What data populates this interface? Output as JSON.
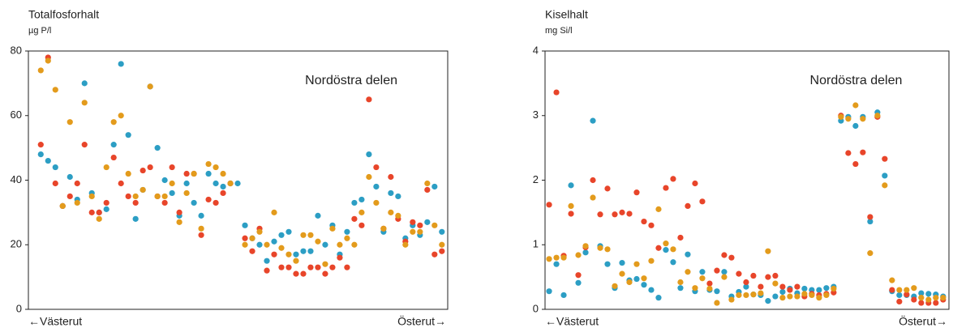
{
  "chart_data": [
    {
      "type": "scatter",
      "title": "Totalfosforhalt",
      "ylabel": "µg P/l",
      "annotation": "Nordöstra delen",
      "x_axis_labels": [
        "←Västerut",
        "Österut→"
      ],
      "x": [
        1,
        2,
        3,
        4,
        5,
        6,
        7,
        8,
        9,
        10,
        11,
        12,
        13,
        14,
        15,
        16,
        17,
        18,
        19,
        20,
        21,
        22,
        23,
        24,
        25,
        26,
        27,
        28,
        29,
        30,
        31,
        32,
        33,
        34,
        35,
        36,
        37,
        38,
        39,
        40,
        41,
        42,
        43,
        44,
        45,
        46,
        47,
        48,
        49,
        50,
        51,
        52,
        53,
        54,
        55,
        56
      ],
      "xlim": [
        -0.7,
        56.8
      ],
      "ylim": [
        0,
        80
      ],
      "yticks": [
        0,
        20,
        40,
        60,
        80
      ],
      "series": [
        {
          "color": "#2c9ec4",
          "values": [
            48,
            46,
            44,
            32,
            41,
            34,
            70,
            36,
            30,
            31,
            51,
            76,
            54,
            28,
            37,
            69,
            50,
            40,
            36,
            29,
            39,
            33,
            29,
            42,
            39,
            38,
            39,
            39,
            26,
            22,
            20,
            15,
            21,
            23,
            24,
            17,
            18,
            18,
            29,
            20,
            26,
            17,
            24,
            33,
            34,
            48,
            38,
            24,
            36,
            35,
            22,
            26,
            23,
            27,
            38,
            24
          ]
        },
        {
          "color": "#e8452a",
          "values": [
            51,
            78,
            39,
            32,
            35,
            39,
            51,
            30,
            30,
            33,
            47,
            39,
            35,
            33,
            43,
            44,
            35,
            33,
            44,
            30,
            42,
            42,
            23,
            34,
            33,
            36,
            39,
            null,
            22,
            18,
            25,
            12,
            17,
            13,
            13,
            11,
            11,
            13,
            13,
            11,
            13,
            16,
            13,
            28,
            26,
            65,
            44,
            25,
            41,
            28,
            21,
            27,
            26,
            37,
            17,
            18
          ]
        },
        {
          "color": "#e39b1c",
          "values": [
            74,
            77,
            68,
            32,
            58,
            33,
            64,
            35,
            28,
            44,
            58,
            60,
            42,
            35,
            37,
            69,
            35,
            35,
            39,
            27,
            36,
            42,
            25,
            45,
            44,
            42,
            39,
            null,
            20,
            22,
            24,
            20,
            30,
            19,
            17,
            15,
            23,
            23,
            21,
            14,
            25,
            20,
            22,
            20,
            30,
            41,
            33,
            25,
            30,
            29,
            20,
            24,
            24,
            39,
            26,
            20
          ]
        }
      ]
    },
    {
      "type": "scatter",
      "title": "Kiselhalt",
      "ylabel": "mg Si/l",
      "annotation": "Nordöstra delen",
      "x_axis_labels": [
        "←Västerut",
        "Österut→"
      ],
      "x": [
        1,
        2,
        3,
        4,
        5,
        6,
        7,
        8,
        9,
        10,
        11,
        12,
        13,
        14,
        15,
        16,
        17,
        18,
        19,
        20,
        21,
        22,
        23,
        24,
        25,
        26,
        27,
        28,
        29,
        30,
        31,
        32,
        33,
        34,
        35,
        36,
        37,
        38,
        39,
        40,
        41,
        42,
        43,
        44,
        45,
        46,
        47,
        48,
        49,
        50,
        51,
        52,
        53,
        54,
        55
      ],
      "xlim": [
        0.44,
        55.8
      ],
      "ylim": [
        0,
        4
      ],
      "yticks": [
        0,
        1,
        2,
        3,
        4
      ],
      "series": [
        {
          "color": "#2c9ec4",
          "values": [
            0.28,
            0.7,
            0.22,
            1.92,
            0.41,
            0.88,
            2.92,
            0.98,
            0.7,
            0.33,
            0.72,
            0.45,
            0.47,
            0.38,
            0.3,
            0.18,
            0.92,
            0.73,
            0.33,
            0.85,
            0.28,
            0.58,
            0.3,
            0.28,
            0.58,
            0.2,
            0.27,
            0.35,
            0.23,
            0.22,
            0.13,
            0.2,
            0.27,
            0.32,
            0.25,
            0.32,
            0.3,
            0.3,
            0.33,
            0.35,
            2.92,
            2.98,
            2.84,
            2.98,
            1.36,
            3.05,
            2.07,
            0.28,
            0.22,
            0.22,
            0.2,
            0.25,
            0.24,
            0.23,
            0.2
          ]
        },
        {
          "color": "#e8452a",
          "values": [
            1.62,
            3.36,
            0.83,
            1.48,
            0.53,
            0.96,
            2.0,
            1.47,
            1.87,
            1.47,
            1.5,
            1.48,
            1.81,
            1.36,
            1.3,
            0.95,
            1.88,
            2.02,
            1.11,
            1.6,
            1.95,
            1.67,
            0.4,
            0.6,
            0.84,
            0.8,
            0.55,
            0.42,
            0.52,
            0.35,
            0.5,
            0.52,
            0.35,
            0.3,
            0.35,
            0.2,
            0.24,
            0.22,
            0.24,
            0.26,
            3.0,
            2.42,
            2.25,
            2.43,
            1.43,
            2.98,
            2.33,
            0.3,
            0.12,
            0.23,
            0.15,
            0.1,
            0.1,
            0.1,
            0.15
          ]
        },
        {
          "color": "#e39b1c",
          "values": [
            0.78,
            0.8,
            0.8,
            1.6,
            0.84,
            0.98,
            1.73,
            0.95,
            0.93,
            0.36,
            0.55,
            0.42,
            0.7,
            0.48,
            0.75,
            1.55,
            1.02,
            0.93,
            0.42,
            0.58,
            0.33,
            0.48,
            0.32,
            0.1,
            0.5,
            0.15,
            0.22,
            0.22,
            0.23,
            0.25,
            0.9,
            0.4,
            0.18,
            0.2,
            0.2,
            0.24,
            0.22,
            0.18,
            0.22,
            0.32,
            2.98,
            2.95,
            3.16,
            2.95,
            0.87,
            3.0,
            1.92,
            0.45,
            0.3,
            0.3,
            0.33,
            0.18,
            0.15,
            0.18,
            0.18
          ]
        }
      ]
    }
  ]
}
